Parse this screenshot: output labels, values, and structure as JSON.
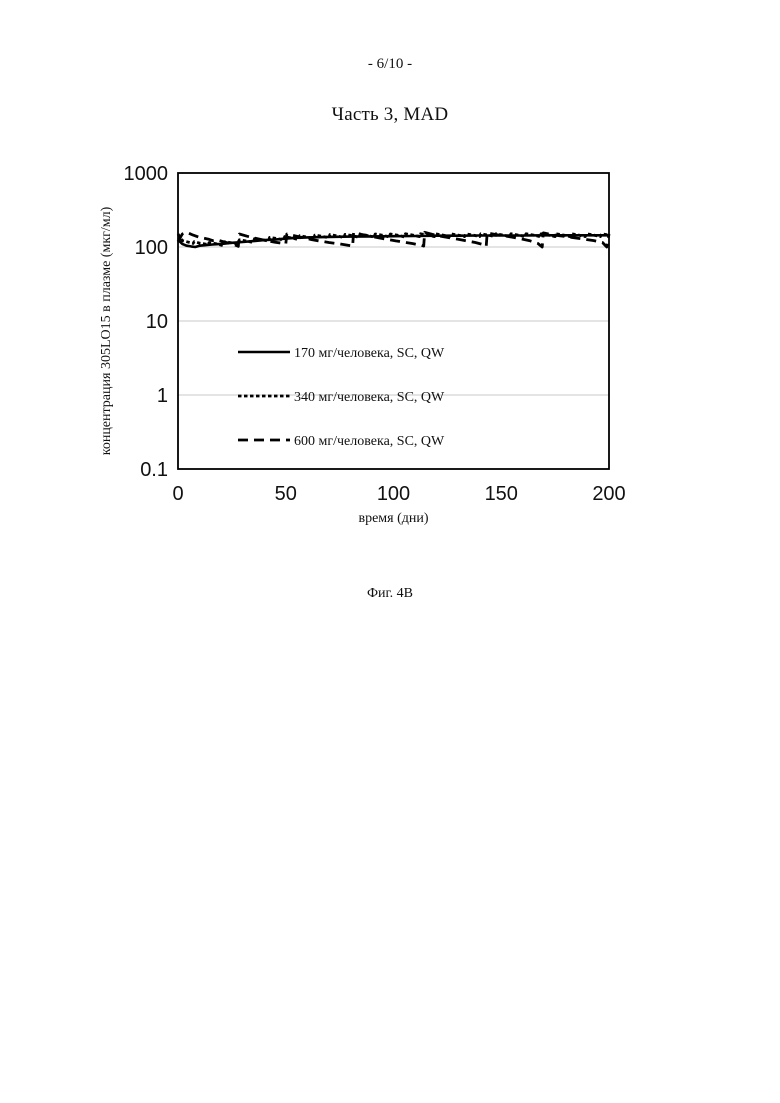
{
  "page": {
    "page_number": "- 6/10 -",
    "figure_caption": "Фиг. 4B"
  },
  "chart_data": {
    "type": "line",
    "title": "Часть 3, MAD",
    "xlabel": "время (дни)",
    "ylabel": "концентрация 305LO15 в плазме (мкг/мл)",
    "xlim": [
      0,
      200
    ],
    "ylim": [
      0.1,
      1000
    ],
    "yscale": "log",
    "x_ticks": [
      "0",
      "50",
      "100",
      "150",
      "200"
    ],
    "y_ticks": [
      "0.1",
      "1",
      "10",
      "100",
      "1000"
    ],
    "grid": "horizontal",
    "legend_position": "center-left",
    "series": [
      {
        "name": "170 мг/человека, SC, QW",
        "style": "solid",
        "color": "#000000",
        "points": [
          [
            0,
            125
          ],
          [
            2,
            110
          ],
          [
            4,
            104
          ],
          [
            6,
            102
          ],
          [
            8,
            100
          ],
          [
            10,
            104
          ],
          [
            13,
            106
          ],
          [
            16,
            108
          ],
          [
            20,
            110
          ],
          [
            25,
            114
          ],
          [
            30,
            117
          ],
          [
            35,
            120
          ],
          [
            40,
            124
          ],
          [
            45,
            126
          ],
          [
            50,
            130
          ],
          [
            55,
            133
          ],
          [
            60,
            135
          ],
          [
            70,
            137
          ],
          [
            80,
            138
          ],
          [
            90,
            139
          ],
          [
            100,
            140
          ],
          [
            110,
            141
          ],
          [
            120,
            142
          ],
          [
            130,
            142
          ],
          [
            140,
            143
          ],
          [
            150,
            143
          ],
          [
            160,
            143
          ],
          [
            170,
            144
          ],
          [
            180,
            144
          ],
          [
            190,
            144
          ],
          [
            200,
            144
          ]
        ]
      },
      {
        "name": "340 мг/человека, SC, QW",
        "style": "dotted",
        "color": "#000000",
        "points": [
          [
            0,
            150
          ],
          [
            2,
            122
          ],
          [
            4,
            118
          ],
          [
            7,
            112
          ],
          [
            7.5,
            118
          ],
          [
            10,
            113
          ],
          [
            14,
            108
          ],
          [
            14.5,
            115
          ],
          [
            18,
            110
          ],
          [
            21,
            104
          ],
          [
            21.5,
            118
          ],
          [
            25,
            114
          ],
          [
            28,
            110
          ],
          [
            28.5,
            125
          ],
          [
            32,
            120
          ],
          [
            35,
            115
          ],
          [
            35.5,
            130
          ],
          [
            39,
            125
          ],
          [
            42,
            120
          ],
          [
            42.5,
            135
          ],
          [
            46,
            130
          ],
          [
            49,
            124
          ],
          [
            49.5,
            138
          ],
          [
            53,
            132
          ],
          [
            56,
            126
          ],
          [
            56.5,
            142
          ],
          [
            60,
            136
          ],
          [
            63,
            130
          ],
          [
            63.5,
            145
          ],
          [
            67,
            139
          ],
          [
            70,
            133
          ],
          [
            70.5,
            147
          ],
          [
            74,
            141
          ],
          [
            77,
            134
          ],
          [
            77.5,
            148
          ],
          [
            81,
            142
          ],
          [
            84,
            135
          ],
          [
            84.5,
            149
          ],
          [
            88,
            143
          ],
          [
            91,
            136
          ],
          [
            91.5,
            150
          ],
          [
            95,
            144
          ],
          [
            98,
            137
          ],
          [
            98.5,
            150
          ],
          [
            102,
            144
          ],
          [
            105,
            137
          ],
          [
            105.5,
            151
          ],
          [
            109,
            145
          ],
          [
            112,
            138
          ],
          [
            112.5,
            151
          ],
          [
            116,
            145
          ],
          [
            119,
            138
          ],
          [
            119.5,
            151
          ],
          [
            123,
            145
          ],
          [
            126,
            138
          ],
          [
            126.5,
            151
          ],
          [
            130,
            145
          ],
          [
            133,
            138
          ],
          [
            133.5,
            151
          ],
          [
            137,
            145
          ],
          [
            140,
            138
          ],
          [
            140.5,
            151
          ],
          [
            144,
            145
          ],
          [
            147,
            138
          ],
          [
            147.5,
            151
          ],
          [
            151,
            145
          ],
          [
            154,
            138
          ],
          [
            154.5,
            151
          ],
          [
            158,
            145
          ],
          [
            161,
            138
          ],
          [
            161.5,
            151
          ],
          [
            165,
            145
          ],
          [
            168,
            138
          ],
          [
            168.5,
            151
          ],
          [
            172,
            145
          ],
          [
            175,
            138
          ],
          [
            175.5,
            151
          ],
          [
            179,
            145
          ],
          [
            182,
            138
          ],
          [
            182.5,
            151
          ],
          [
            186,
            145
          ],
          [
            189,
            138
          ],
          [
            189.5,
            151
          ],
          [
            193,
            145
          ],
          [
            196,
            138
          ],
          [
            196.5,
            151
          ],
          [
            200,
            145
          ]
        ]
      },
      {
        "name": "600 мг/человека, SC, QW",
        "style": "dashed",
        "color": "#000000",
        "points": [
          [
            0,
            118
          ],
          [
            2,
            150
          ],
          [
            4,
            158
          ],
          [
            7,
            145
          ],
          [
            10,
            135
          ],
          [
            14,
            128
          ],
          [
            16,
            122
          ],
          [
            18,
            125
          ],
          [
            21,
            118
          ],
          [
            24,
            112
          ],
          [
            27,
            105
          ],
          [
            28,
            102
          ],
          [
            28.5,
            150
          ],
          [
            32,
            140
          ],
          [
            35,
            133
          ],
          [
            38,
            127
          ],
          [
            42,
            120
          ],
          [
            45,
            116
          ],
          [
            49,
            112
          ],
          [
            50,
            110
          ],
          [
            50.5,
            150
          ],
          [
            54,
            142
          ],
          [
            58,
            134
          ],
          [
            62,
            126
          ],
          [
            66,
            120
          ],
          [
            70,
            115
          ],
          [
            75,
            110
          ],
          [
            80,
            104
          ],
          [
            81,
            102
          ],
          [
            81.5,
            158
          ],
          [
            85,
            148
          ],
          [
            89,
            140
          ],
          [
            93,
            133
          ],
          [
            97,
            127
          ],
          [
            101,
            121
          ],
          [
            105,
            116
          ],
          [
            109,
            111
          ],
          [
            113,
            105
          ],
          [
            114,
            103
          ],
          [
            114.5,
            158
          ],
          [
            118,
            148
          ],
          [
            122,
            140
          ],
          [
            126,
            133
          ],
          [
            130,
            127
          ],
          [
            134,
            121
          ],
          [
            138,
            115
          ],
          [
            142,
            107
          ],
          [
            143,
            102
          ],
          [
            143.5,
            155
          ],
          [
            147,
            148
          ],
          [
            151,
            142
          ],
          [
            155,
            136
          ],
          [
            159,
            129
          ],
          [
            163,
            122
          ],
          [
            167,
            112
          ],
          [
            169,
            100
          ],
          [
            169.5,
            155
          ],
          [
            173,
            148
          ],
          [
            177,
            142
          ],
          [
            181,
            137
          ],
          [
            185,
            132
          ],
          [
            189,
            127
          ],
          [
            193,
            122
          ],
          [
            197,
            115
          ],
          [
            199,
            100
          ],
          [
            200,
            150
          ]
        ]
      }
    ]
  }
}
